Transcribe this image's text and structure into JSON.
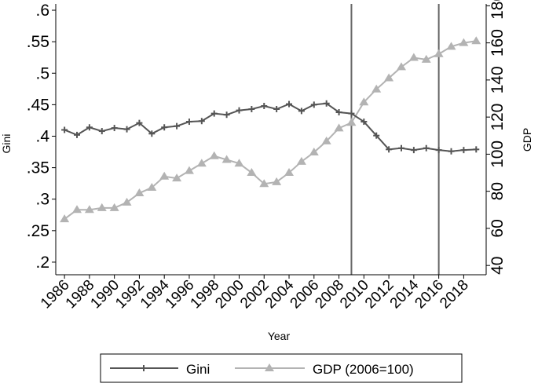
{
  "chart_data": {
    "type": "line",
    "title": "",
    "xlabel": "Year",
    "ylabel_left": "Gini",
    "ylabel_right": "GDP",
    "x": [
      1986,
      1987,
      1988,
      1989,
      1990,
      1991,
      1992,
      1993,
      1994,
      1995,
      1996,
      1997,
      1998,
      1999,
      2000,
      2001,
      2002,
      2003,
      2004,
      2005,
      2006,
      2007,
      2008,
      2009,
      2010,
      2011,
      2012,
      2013,
      2014,
      2015,
      2016,
      2017,
      2018,
      2019
    ],
    "xlim": [
      1985.3,
      2019.8
    ],
    "x_ticks": [
      "1986",
      "1988",
      "1990",
      "1992",
      "1994",
      "1996",
      "1998",
      "2000",
      "2002",
      "2004",
      "2006",
      "2008",
      "2010",
      "2012",
      "2014",
      "2016",
      "2018"
    ],
    "x_tick_values": [
      1986,
      1988,
      1990,
      1992,
      1994,
      1996,
      1998,
      2000,
      2002,
      2004,
      2006,
      2008,
      2010,
      2012,
      2014,
      2016,
      2018
    ],
    "ylim_left": [
      0.18,
      0.61
    ],
    "y_ticks_left": [
      ".2",
      ".25",
      ".3",
      ".35",
      ".4",
      ".45",
      ".5",
      ".55",
      ".6"
    ],
    "y_tick_values_left": [
      0.2,
      0.25,
      0.3,
      0.35,
      0.4,
      0.45,
      0.5,
      0.55,
      0.6
    ],
    "ylim_right": [
      35,
      181
    ],
    "y_ticks_right": [
      "40",
      "60",
      "80",
      "100",
      "120",
      "140",
      "160",
      "180"
    ],
    "y_tick_values_right": [
      40,
      60,
      80,
      100,
      120,
      140,
      160,
      180
    ],
    "vertical_lines": [
      2009,
      2016
    ],
    "series": [
      {
        "name": "Gini",
        "axis": "left",
        "color": "#555555",
        "marker": "plus",
        "values": [
          0.41,
          0.402,
          0.414,
          0.408,
          0.413,
          0.411,
          0.421,
          0.404,
          0.414,
          0.416,
          0.423,
          0.424,
          0.436,
          0.434,
          0.441,
          0.443,
          0.448,
          0.443,
          0.451,
          0.44,
          0.45,
          0.452,
          0.438,
          0.436,
          0.423,
          0.401,
          0.379,
          0.381,
          0.378,
          0.381,
          0.378,
          0.376,
          0.378,
          0.379
        ]
      },
      {
        "name": "GDP (2006=100)",
        "axis": "right",
        "color": "#b3b3b3",
        "marker": "triangle",
        "values": [
          65,
          70,
          70,
          71,
          71,
          74,
          79,
          82,
          88,
          87,
          91,
          95,
          99,
          97,
          95,
          90,
          84,
          85,
          90,
          96,
          101,
          107,
          114,
          117,
          128,
          135,
          141,
          147,
          152,
          151,
          154,
          158,
          160,
          161
        ]
      }
    ],
    "legend": {
      "placement": "bottom",
      "entries": [
        "Gini",
        "GDP (2006=100)"
      ]
    }
  }
}
